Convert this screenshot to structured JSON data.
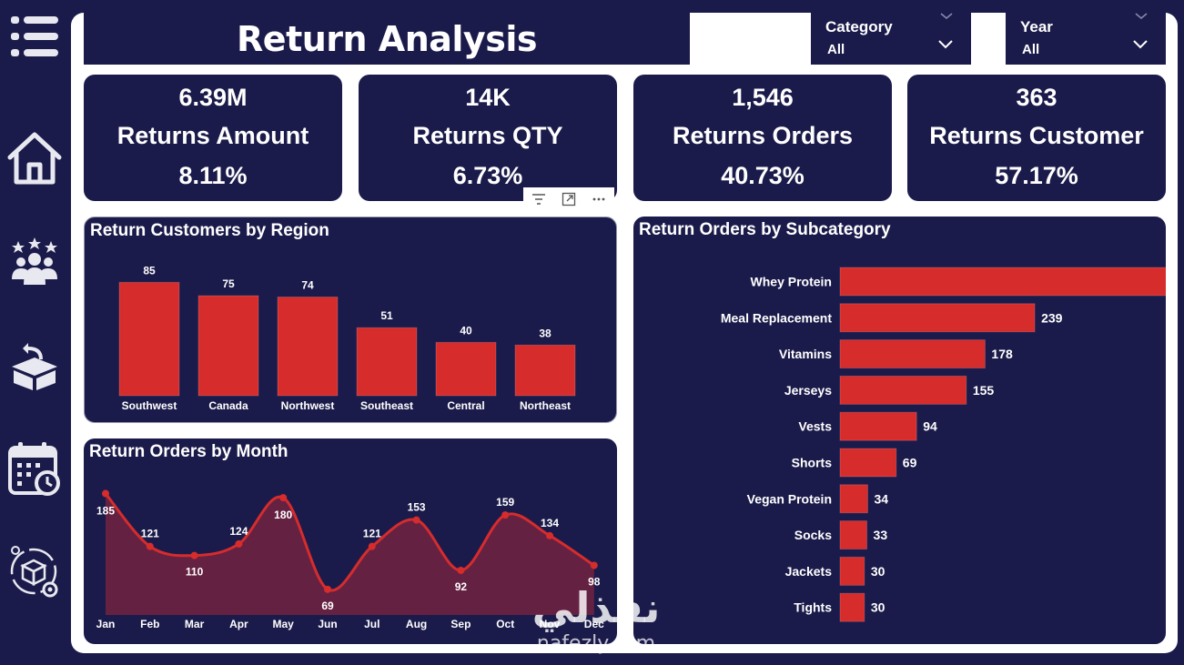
{
  "header": {
    "title": "Return Analysis"
  },
  "slicers": [
    {
      "label": "Category",
      "value": "All"
    },
    {
      "label": "Year",
      "value": "All"
    }
  ],
  "sidebar": {
    "items": [
      {
        "icon": "menu-icon"
      },
      {
        "icon": "home-icon"
      },
      {
        "icon": "customers-icon"
      },
      {
        "icon": "returns-box-icon"
      },
      {
        "icon": "calendar-clock-icon"
      },
      {
        "icon": "product-settings-icon"
      }
    ]
  },
  "kpis": [
    {
      "value": "6.39M",
      "label": "Returns Amount",
      "percent": "8.11%"
    },
    {
      "value": "14K",
      "label": "Returns QTY",
      "percent": "6.73%"
    },
    {
      "value": "1,546",
      "label": "Returns Orders",
      "percent": "40.73%"
    },
    {
      "value": "363",
      "label": "Returns Customer",
      "percent": "57.17%"
    }
  ],
  "colors": {
    "bar": "#d62c2c",
    "panel": "#1b1b4b",
    "area_fill": "#6e2241",
    "line": "#d62c2c"
  },
  "watermark": {
    "arabic": "نفذلي",
    "latin": "nafezly.com"
  },
  "chart_data": [
    {
      "type": "bar",
      "title": "Return Customers by Region",
      "categories": [
        "Southwest",
        "Canada",
        "Northwest",
        "Southeast",
        "Central",
        "Northeast"
      ],
      "values": [
        85,
        75,
        74,
        51,
        40,
        38
      ],
      "ylim": [
        0,
        90
      ],
      "grid": false
    },
    {
      "type": "area",
      "title": "Return Orders by Month",
      "categories": [
        "Jan",
        "Feb",
        "Mar",
        "Apr",
        "May",
        "Jun",
        "Jul",
        "Aug",
        "Sep",
        "Oct",
        "Nov",
        "Dec"
      ],
      "values": [
        185,
        121,
        110,
        124,
        180,
        69,
        121,
        153,
        92,
        159,
        134,
        98
      ],
      "ylim": [
        60,
        190
      ],
      "grid": false
    },
    {
      "type": "bar",
      "orientation": "horizontal",
      "title": "Return Orders by Subcategory",
      "categories": [
        "Whey Protein",
        "Meal Replacement",
        "Vitamins",
        "Jerseys",
        "Vests",
        "Shorts",
        "Vegan Protein",
        "Socks",
        "Jackets",
        "Tights"
      ],
      "values": [
        441,
        239,
        178,
        155,
        94,
        69,
        34,
        33,
        30,
        30
      ],
      "xlim": [
        0,
        441
      ],
      "grid": false
    }
  ]
}
